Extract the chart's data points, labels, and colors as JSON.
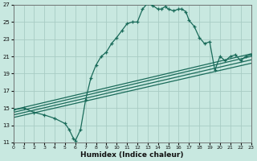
{
  "xlabel": "Humidex (Indice chaleur)",
  "xlim": [
    0,
    23
  ],
  "ylim": [
    11,
    27
  ],
  "xticks": [
    0,
    1,
    2,
    3,
    4,
    5,
    6,
    7,
    8,
    9,
    10,
    11,
    12,
    13,
    14,
    15,
    16,
    17,
    18,
    19,
    20,
    21,
    22,
    23
  ],
  "yticks": [
    11,
    13,
    15,
    17,
    19,
    21,
    23,
    25,
    27
  ],
  "bg_color": "#c8e8e0",
  "line_color": "#1a6b5a",
  "grid_color": "#a8ccc4",
  "main_curve_x": [
    0,
    1,
    2,
    3,
    4,
    5,
    5.4,
    5.8,
    6,
    6.5,
    7,
    7.5,
    8,
    8.5,
    9,
    9.5,
    10,
    10.5,
    11,
    11.5,
    12,
    12.5,
    13,
    13.5,
    14,
    14.3,
    14.7,
    15,
    15.5,
    16,
    16.3,
    16.7,
    17,
    17.5,
    18,
    18.5,
    19,
    19.5,
    20,
    20.5,
    21,
    21.5,
    22,
    22.5,
    23
  ],
  "main_curve_y": [
    14.8,
    15.0,
    14.5,
    14.2,
    13.8,
    13.2,
    12.5,
    11.5,
    11.2,
    12.5,
    16.0,
    18.5,
    20.0,
    21.0,
    21.5,
    22.5,
    23.2,
    24.0,
    24.8,
    25.0,
    25.0,
    26.5,
    27.2,
    26.9,
    26.5,
    26.5,
    26.8,
    26.5,
    26.3,
    26.5,
    26.5,
    26.2,
    25.2,
    24.5,
    23.2,
    22.5,
    22.7,
    19.4,
    21.0,
    20.5,
    21.0,
    21.2,
    20.5,
    21.0,
    21.2
  ],
  "linear_lines": [
    [
      0,
      14.8,
      23,
      21.3
    ],
    [
      0,
      14.5,
      23,
      21.0
    ],
    [
      0,
      14.2,
      23,
      20.6
    ],
    [
      0,
      13.9,
      23,
      20.2
    ]
  ]
}
